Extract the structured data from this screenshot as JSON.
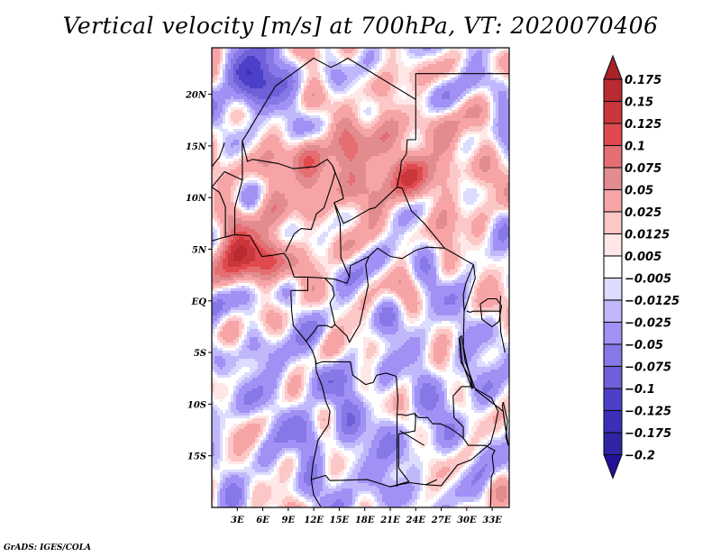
{
  "title": "Vertical velocity [m/s] at 700hPa, VT: 2020070406",
  "footer": "GrADS: IGES/COLA",
  "map": {
    "variable": "Vertical velocity",
    "units": "m/s",
    "level": "700hPa",
    "valid_time": "2020070406",
    "lon_range": [
      0,
      35
    ],
    "lat_range": [
      -20,
      24.5
    ],
    "lat_ticks": [
      {
        "value": 20,
        "label": "20N"
      },
      {
        "value": 15,
        "label": "15N"
      },
      {
        "value": 10,
        "label": "10N"
      },
      {
        "value": 5,
        "label": "5N"
      },
      {
        "value": 0,
        "label": "EQ"
      },
      {
        "value": -5,
        "label": "5S"
      },
      {
        "value": -10,
        "label": "10S"
      },
      {
        "value": -15,
        "label": "15S"
      }
    ],
    "lon_ticks": [
      {
        "value": 3,
        "label": "3E"
      },
      {
        "value": 6,
        "label": "6E"
      },
      {
        "value": 9,
        "label": "9E"
      },
      {
        "value": 12,
        "label": "12E"
      },
      {
        "value": 15,
        "label": "15E"
      },
      {
        "value": 18,
        "label": "18E"
      },
      {
        "value": 21,
        "label": "21E"
      },
      {
        "value": 24,
        "label": "24E"
      },
      {
        "value": 27,
        "label": "27E"
      },
      {
        "value": 30,
        "label": "30E"
      },
      {
        "value": 33,
        "label": "33E"
      }
    ],
    "features": [
      {
        "name": "strong-ascent-gulf-of-guinea",
        "lon": [
          0,
          8
        ],
        "lat": [
          3,
          6
        ],
        "sign": "positive",
        "strength": 0.15
      },
      {
        "name": "sahel-ascent-band",
        "lon": [
          5,
          30
        ],
        "lat": [
          9,
          17
        ],
        "sign": "positive",
        "strength": 0.075
      },
      {
        "name": "northwest-subsidence",
        "lon": [
          2,
          8
        ],
        "lat": [
          18,
          24.5
        ],
        "sign": "negative",
        "strength": -0.1
      },
      {
        "name": "southern-subsidence",
        "lon": [
          0,
          35
        ],
        "lat": [
          -20,
          -3
        ],
        "sign": "negative",
        "strength": -0.025
      }
    ]
  },
  "colorbar": {
    "levels": [
      "0.175",
      "0.15",
      "0.125",
      "0.1",
      "0.075",
      "0.05",
      "0.025",
      "0.0125",
      "0.005",
      "−0.005",
      "−0.0125",
      "−0.025",
      "−0.05",
      "−0.075",
      "−0.1",
      "−0.125",
      "−0.175",
      "−0.2"
    ],
    "colors": [
      "#ab2127",
      "#b92b30",
      "#c9373b",
      "#e0494d",
      "#e56e73",
      "#e28c90",
      "#f6a4a6",
      "#fcc7c7",
      "#ffe7e7",
      "#ffffff",
      "#dcdcff",
      "#c0b8fa",
      "#a191f5",
      "#8678e6",
      "#6f5fd8",
      "#4c40c9",
      "#3b2fb7",
      "#2e24a4",
      "#23109a"
    ]
  }
}
